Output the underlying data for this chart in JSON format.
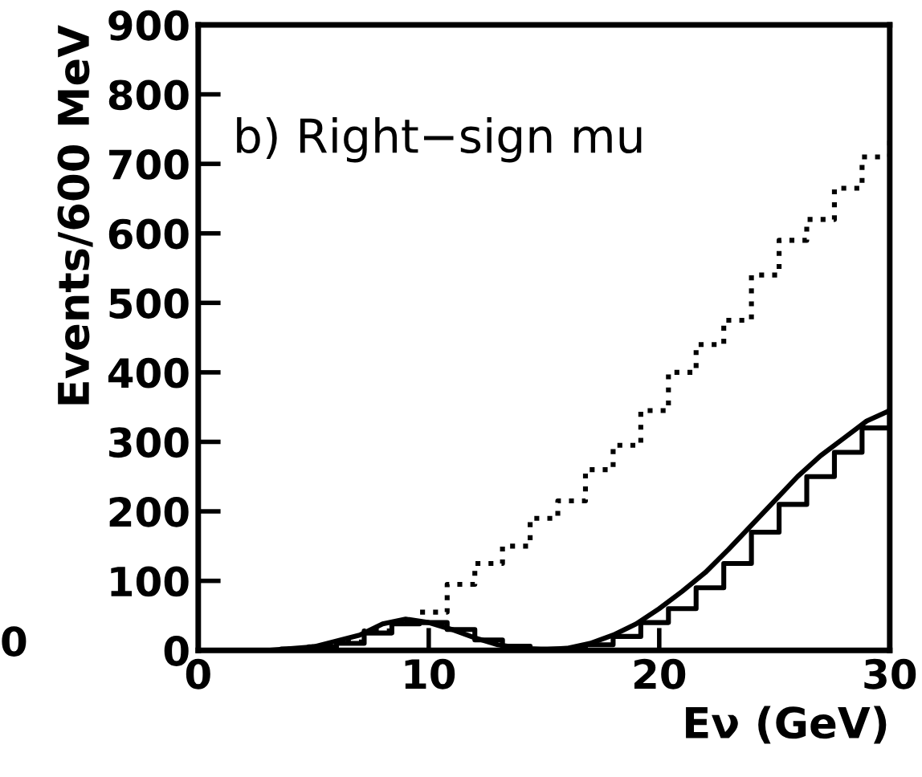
{
  "chart_data": {
    "type": "step",
    "xlabel": "Eν (GeV)",
    "ylabel": "Events/600 MeV",
    "annotations": [
      "b) Right−sign mu",
      "0"
    ],
    "xlim": [
      0,
      30
    ],
    "ylim": [
      0,
      900
    ],
    "xticks": [
      0,
      10,
      20,
      30
    ],
    "yticks": [
      0,
      100,
      200,
      300,
      400,
      500,
      600,
      700,
      800,
      900
    ],
    "grid": false,
    "legend": false,
    "series": [
      {
        "line_style": "dotted",
        "color": "#000000",
        "x": [
          0,
          1.2,
          2.4,
          3.6,
          4.8,
          6,
          7.2,
          8.4,
          9.6,
          10.8,
          12,
          13.2,
          14.4,
          15.6,
          16.8,
          18,
          19.2,
          20.4,
          21.6,
          22.8,
          24,
          25.2,
          26.4,
          27.6,
          28.8,
          30
        ],
        "values": [
          0,
          0,
          0,
          2,
          5,
          12,
          28,
          40,
          55,
          95,
          125,
          150,
          190,
          215,
          260,
          295,
          345,
          400,
          440,
          475,
          540,
          590,
          620,
          665,
          710,
          745
        ]
      },
      {
        "line_style": "solid",
        "color": "#000000",
        "x": [
          0,
          1.2,
          2.4,
          3.6,
          4.8,
          6,
          7.2,
          8.4,
          9.6,
          10.8,
          12,
          13.2,
          14.4,
          15.6,
          16.8,
          18,
          19.2,
          20.4,
          21.6,
          22.8,
          24,
          25.2,
          26.4,
          27.6,
          28.8,
          30
        ],
        "values": [
          0,
          0,
          0,
          2,
          5,
          10,
          25,
          38,
          40,
          30,
          15,
          6,
          2,
          2,
          8,
          20,
          40,
          60,
          90,
          125,
          170,
          210,
          250,
          285,
          320,
          345
        ]
      },
      {
        "type": "line",
        "line_style": "solid",
        "color": "#000000",
        "x": [
          3,
          5,
          7,
          8,
          9,
          10,
          11,
          12,
          13,
          14,
          15,
          16,
          17,
          18,
          19,
          20,
          21,
          22,
          23,
          24,
          25,
          26,
          27,
          28,
          29,
          30
        ],
        "values": [
          0,
          5,
          22,
          38,
          45,
          40,
          30,
          18,
          8,
          3,
          1,
          3,
          10,
          22,
          38,
          60,
          85,
          112,
          145,
          180,
          215,
          250,
          280,
          305,
          330,
          345
        ]
      }
    ]
  }
}
